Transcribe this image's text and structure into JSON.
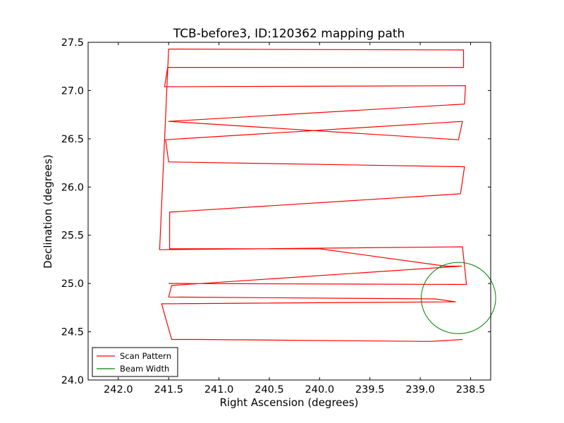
{
  "chart_data": {
    "type": "line",
    "title": "TCB-before3, ID:120362 mapping path",
    "xlabel": "Right Ascension (degrees)",
    "ylabel": "Declination (degrees)",
    "xlim": [
      242.3,
      238.3
    ],
    "ylim": [
      24.0,
      27.5
    ],
    "x_inverted": true,
    "xticks": [
      242.0,
      241.5,
      241.0,
      240.5,
      240.0,
      239.5,
      239.0,
      238.5
    ],
    "xtick_labels": [
      "242.0",
      "241.5",
      "241.0",
      "240.5",
      "240.0",
      "239.5",
      "239.0",
      "238.5"
    ],
    "yticks": [
      24.0,
      24.5,
      25.0,
      25.5,
      26.0,
      26.5,
      27.0,
      27.5
    ],
    "ytick_labels": [
      "24.0",
      "24.5",
      "25.0",
      "25.5",
      "26.0",
      "26.5",
      "27.0",
      "27.5"
    ],
    "grid": false,
    "legend_position": "lower-left",
    "series": [
      {
        "name": "Scan Pattern",
        "color": "#ff0000",
        "x": [
          238.58,
          238.9,
          241.2,
          241.47,
          241.57,
          238.65,
          238.85,
          241.5,
          241.47,
          238.59,
          238.75,
          240.0,
          241.49,
          241.49,
          238.6,
          238.56,
          241.5,
          241.53,
          238.58,
          238.62,
          241.5,
          238.56,
          238.55,
          241.54,
          241.51,
          238.57,
          238.57,
          241.5,
          241.59,
          238.58,
          238.54,
          241.5
        ],
        "y": [
          24.42,
          24.4,
          24.42,
          24.42,
          24.79,
          24.81,
          24.84,
          24.86,
          24.98,
          25.18,
          25.18,
          25.36,
          25.36,
          25.74,
          25.93,
          26.21,
          26.26,
          26.49,
          26.68,
          26.49,
          26.68,
          26.86,
          27.05,
          27.04,
          27.24,
          27.24,
          27.42,
          27.43,
          25.35,
          25.38,
          24.99,
          25.0
        ]
      },
      {
        "name": "Beam Width",
        "color": "#008000",
        "center": [
          238.62,
          24.85
        ],
        "radius": 0.37
      }
    ]
  },
  "legend": {
    "items": [
      {
        "label": "Scan Pattern",
        "color": "#ff0000"
      },
      {
        "label": "Beam Width",
        "color": "#008000"
      }
    ]
  }
}
